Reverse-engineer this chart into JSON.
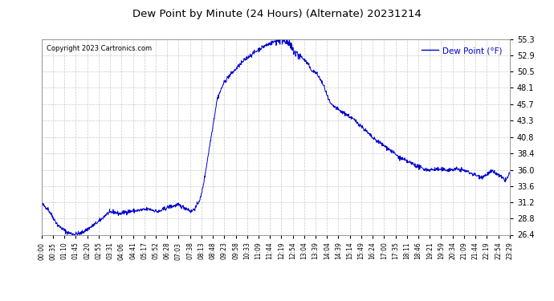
{
  "title": "Dew Point by Minute (24 Hours) (Alternate) 20231214",
  "copyright": "Copyright 2023 Cartronics.com",
  "legend_label": "Dew Point (°F)",
  "legend_color": "#0000cc",
  "line_color": "#0000cc",
  "background_color": "#ffffff",
  "grid_color": "#bbbbbb",
  "ylim": [
    26.4,
    55.3
  ],
  "yticks": [
    26.4,
    28.8,
    31.2,
    33.6,
    36.0,
    38.4,
    40.8,
    43.3,
    45.7,
    48.1,
    50.5,
    52.9,
    55.3
  ],
  "xtick_labels": [
    "00:00",
    "00:35",
    "01:10",
    "01:45",
    "02:20",
    "02:55",
    "03:31",
    "04:06",
    "04:41",
    "05:17",
    "05:52",
    "06:28",
    "07:03",
    "07:38",
    "08:13",
    "08:48",
    "09:23",
    "09:58",
    "10:33",
    "11:09",
    "11:44",
    "12:19",
    "12:54",
    "13:04",
    "13:39",
    "14:04",
    "14:39",
    "15:14",
    "15:49",
    "16:24",
    "17:00",
    "17:35",
    "18:11",
    "18:46",
    "19:21",
    "19:59",
    "20:34",
    "21:09",
    "21:44",
    "22:19",
    "22:54",
    "23:29"
  ]
}
